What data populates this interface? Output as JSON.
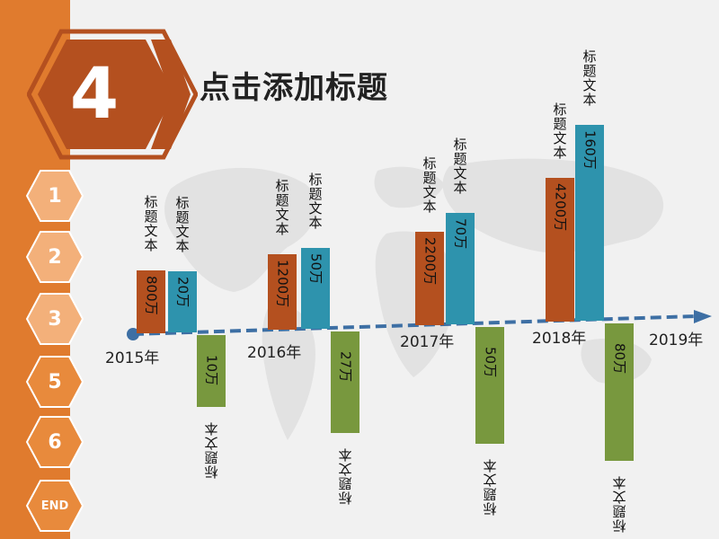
{
  "title": "点击添加标题",
  "big_number": "4",
  "nav": [
    {
      "label": "1",
      "style": "light"
    },
    {
      "label": "2",
      "style": "light"
    },
    {
      "label": "3",
      "style": "light"
    },
    {
      "label": "5",
      "style": "solid"
    },
    {
      "label": "6",
      "style": "solid"
    },
    {
      "label": "END",
      "style": "solid"
    }
  ],
  "colors": {
    "sidebar": "#e07b2e",
    "hex_solid": "#e88a3c",
    "hex_light": "#f3b07a",
    "big_hex": "#b4501f",
    "bar_brown": "#b4501f",
    "bar_teal": "#2e93ad",
    "bar_green": "#78983e",
    "axis": "#3d6fa4"
  },
  "chart_data": {
    "type": "bar",
    "categories": [
      "2015年",
      "2016年",
      "2017年",
      "2018年"
    ],
    "end_label": "2019年",
    "series": [
      {
        "name": "标题文本",
        "color": "#b4501f",
        "values": [
          800,
          1200,
          2200,
          4200
        ],
        "labels": [
          "800万",
          "1200万",
          "2200万",
          "4200万"
        ]
      },
      {
        "name": "标题文本",
        "color": "#2e93ad",
        "values": [
          20,
          50,
          70,
          160
        ],
        "labels": [
          "20万",
          "50万",
          "70万",
          "160万"
        ]
      },
      {
        "name": "标题文本",
        "color": "#78983e",
        "values": [
          10,
          27,
          50,
          80
        ],
        "labels": [
          "10万",
          "27万",
          "50万",
          "80万"
        ],
        "direction": "down"
      }
    ]
  }
}
